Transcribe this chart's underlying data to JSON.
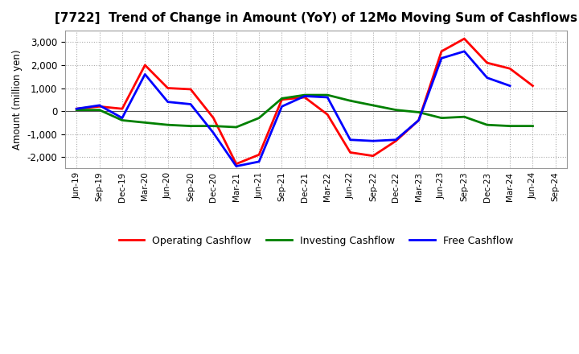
{
  "title": "[7722]  Trend of Change in Amount (YoY) of 12Mo Moving Sum of Cashflows",
  "ylabel": "Amount (million yen)",
  "x_labels": [
    "Jun-19",
    "Sep-19",
    "Dec-19",
    "Mar-20",
    "Jun-20",
    "Sep-20",
    "Dec-20",
    "Mar-21",
    "Jun-21",
    "Sep-21",
    "Dec-21",
    "Mar-22",
    "Jun-22",
    "Sep-22",
    "Dec-22",
    "Mar-23",
    "Jun-23",
    "Sep-23",
    "Dec-23",
    "Mar-24",
    "Jun-24",
    "Sep-24"
  ],
  "operating": [
    100,
    200,
    100,
    2000,
    1000,
    950,
    -300,
    -2300,
    -1900,
    500,
    600,
    -150,
    -1800,
    -1950,
    -1300,
    -400,
    2600,
    3150,
    2100,
    1850,
    1100,
    null
  ],
  "investing": [
    50,
    50,
    -400,
    -500,
    -600,
    -650,
    -650,
    -700,
    -300,
    550,
    700,
    700,
    450,
    250,
    50,
    -50,
    -300,
    -250,
    -600,
    -650,
    -650,
    null
  ],
  "free": [
    100,
    250,
    -300,
    1600,
    400,
    300,
    -950,
    -2400,
    -2200,
    200,
    650,
    600,
    -1250,
    -1300,
    -1250,
    -400,
    2300,
    2600,
    1450,
    1100,
    null,
    null
  ],
  "operating_color": "#ff0000",
  "investing_color": "#008000",
  "free_color": "#0000ff",
  "background_color": "#ffffff",
  "grid_color": "#aaaaaa",
  "ylim": [
    -2500,
    3500
  ],
  "yticks": [
    -2000,
    -1000,
    0,
    1000,
    2000,
    3000
  ],
  "title_fontsize": 11,
  "legend_labels": [
    "Operating Cashflow",
    "Investing Cashflow",
    "Free Cashflow"
  ],
  "linewidth": 2.0
}
